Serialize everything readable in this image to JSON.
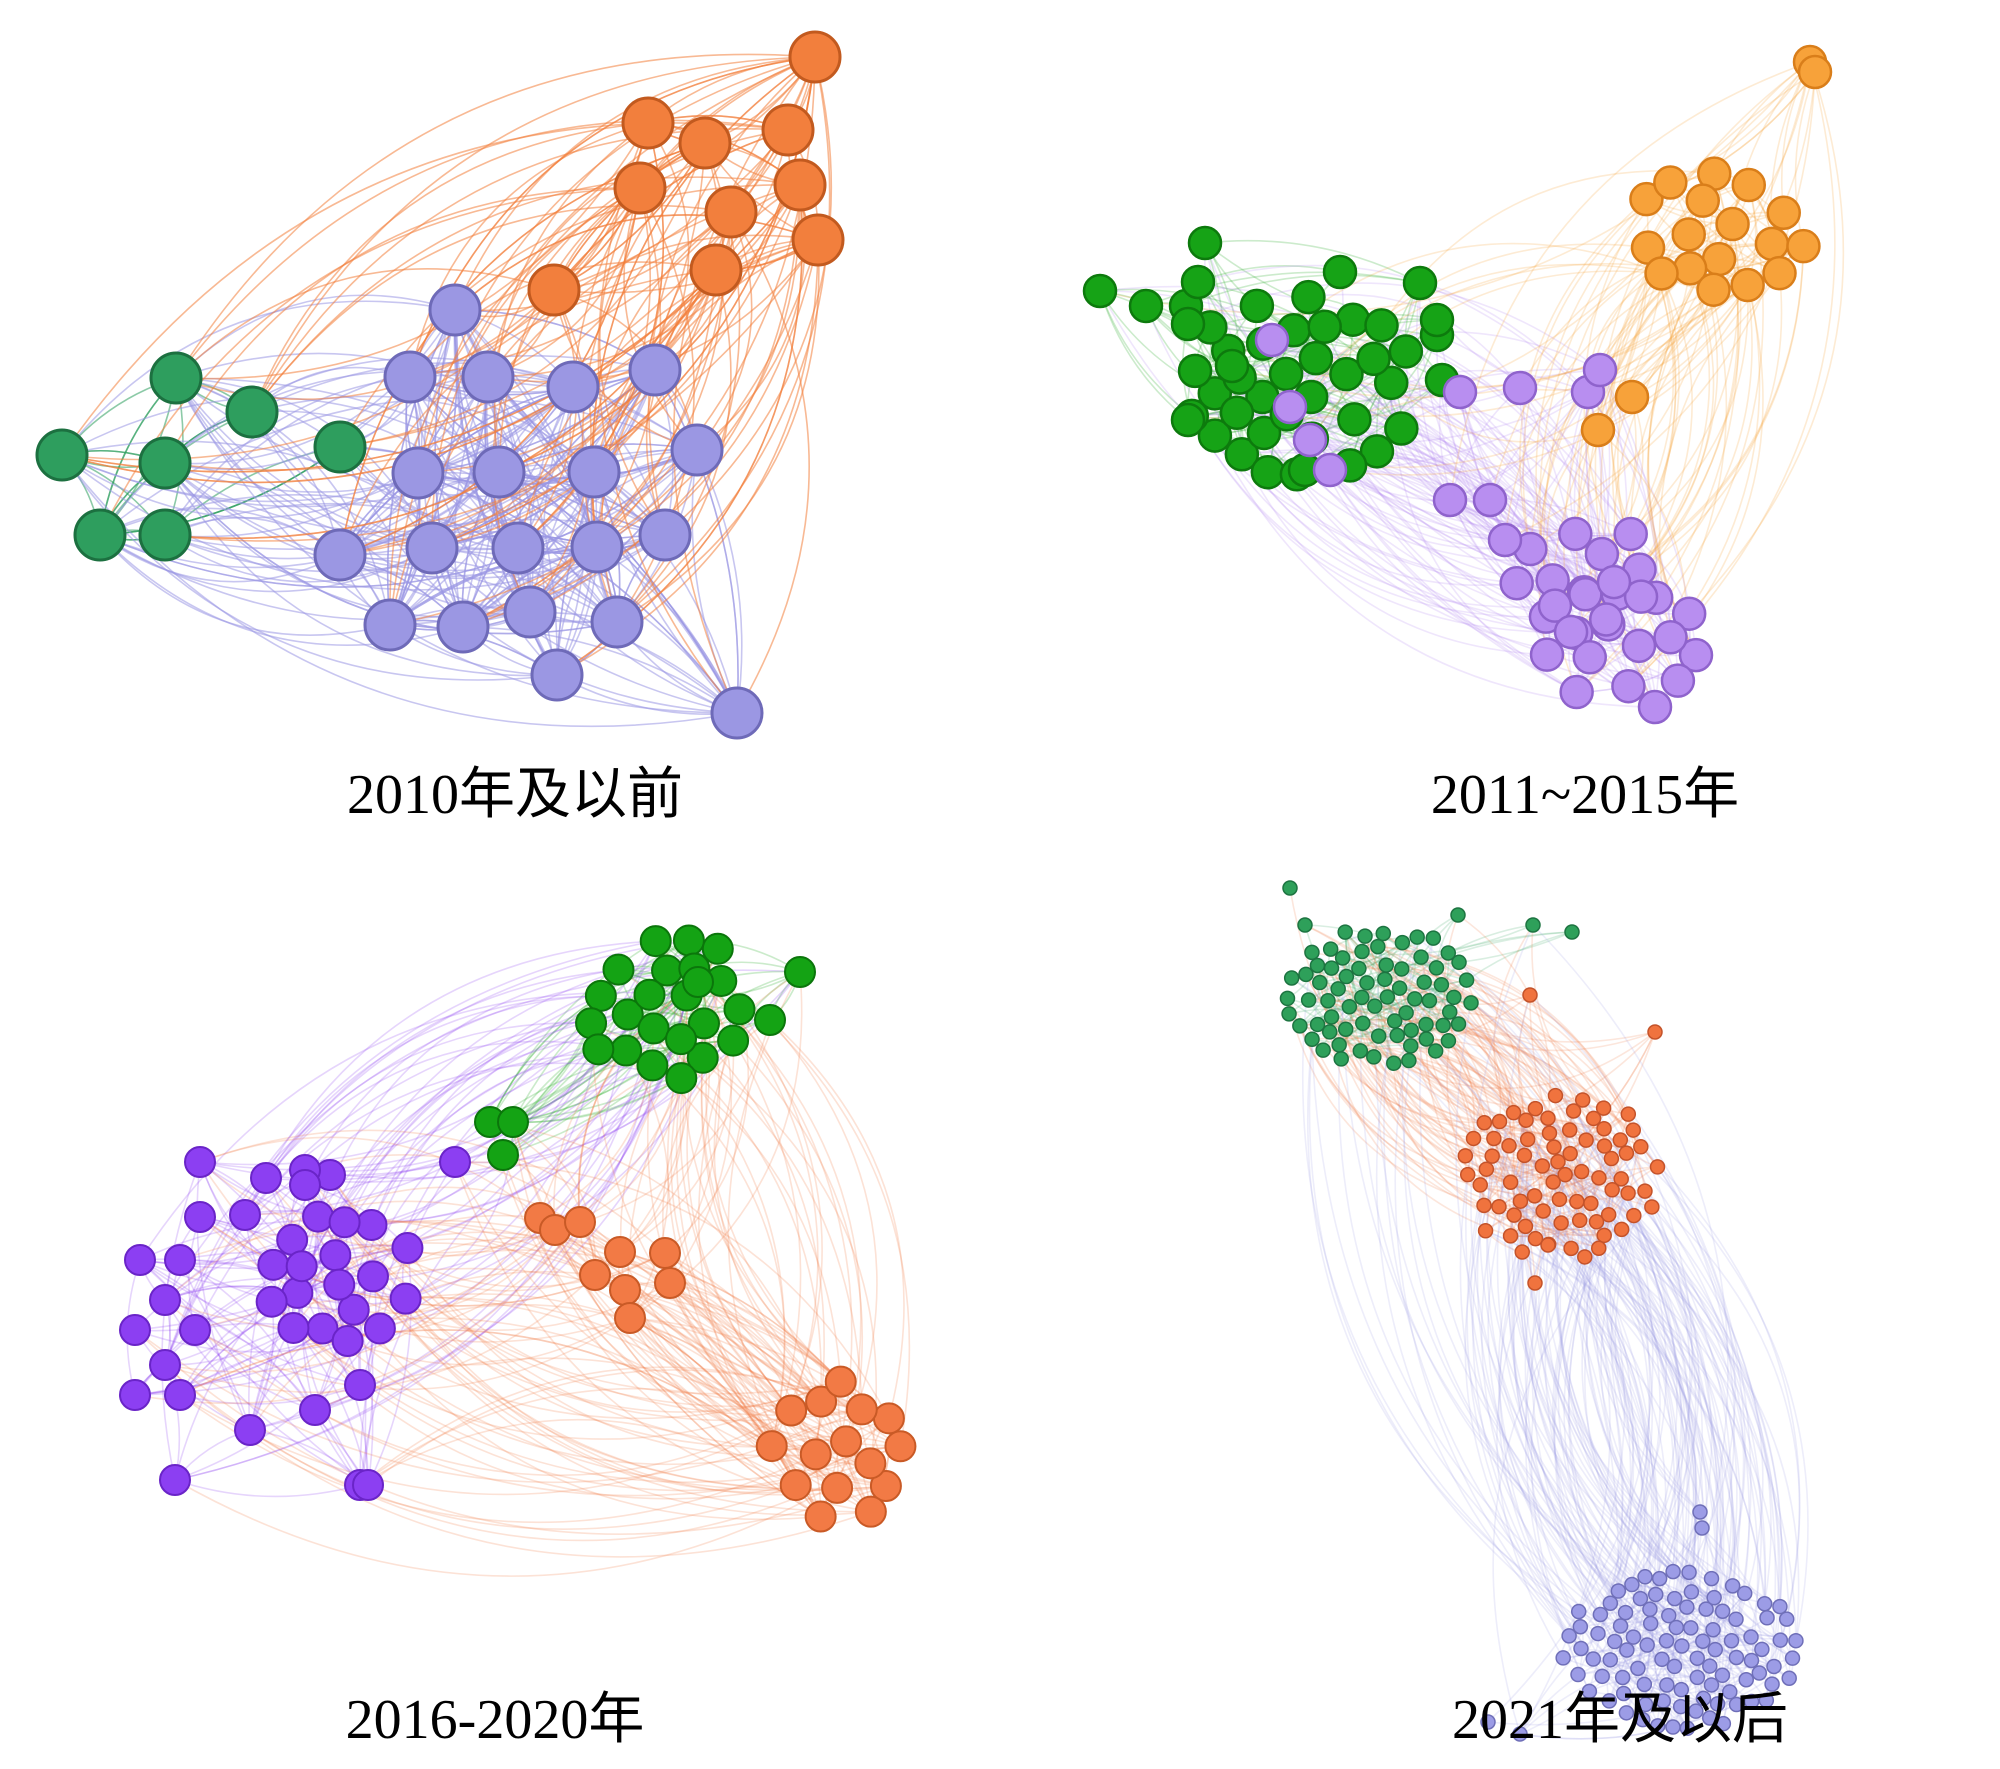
{
  "panels": [
    {
      "caption": "2010年及以前",
      "clusters": [
        {
          "name": "green",
          "color": "#2e9e5e",
          "stroke": "#1c7040"
        },
        {
          "name": "purple",
          "color": "#9b97e3",
          "stroke": "#6e6ab8"
        },
        {
          "name": "orange",
          "color": "#f27f3d",
          "stroke": "#c25a1f"
        }
      ]
    },
    {
      "caption": "2011~2015年",
      "clusters": [
        {
          "name": "green",
          "color": "#16a316",
          "stroke": "#0d7a0d"
        },
        {
          "name": "purple",
          "color": "#b88ef0",
          "stroke": "#8f63cc"
        },
        {
          "name": "orange",
          "color": "#f7a23a",
          "stroke": "#d97e1a"
        }
      ]
    },
    {
      "caption": "2016-2020年",
      "clusters": [
        {
          "name": "green",
          "color": "#14a314",
          "stroke": "#0b760b"
        },
        {
          "name": "purple",
          "color": "#8c3ff2",
          "stroke": "#6a24c8"
        },
        {
          "name": "orange",
          "color": "#f27a45",
          "stroke": "#c95a26"
        }
      ]
    },
    {
      "caption": "2021年及以后",
      "clusters": [
        {
          "name": "green",
          "color": "#2ea05a",
          "stroke": "#1d7441"
        },
        {
          "name": "orange",
          "color": "#f0733e",
          "stroke": "#c4532a"
        },
        {
          "name": "purple",
          "color": "#9c9ce6",
          "stroke": "#6f6fb8"
        }
      ]
    }
  ]
}
